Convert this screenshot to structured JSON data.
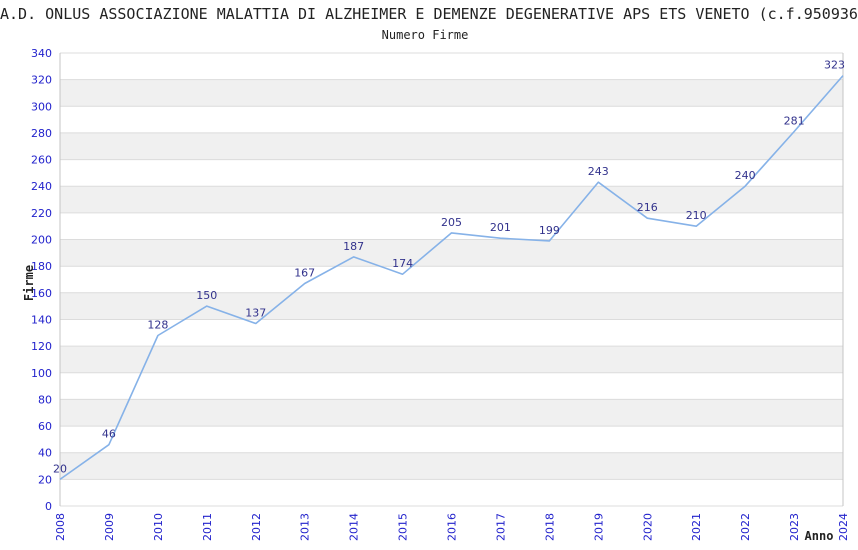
{
  "title": "A.D. ONLUS ASSOCIAZIONE MALATTIA DI ALZHEIMER E DEMENZE DEGENERATIVE APS ETS VENETO (c.f.950936",
  "subtitle": "Numero Firme",
  "chart_data": {
    "type": "line",
    "title": "Numero Firme",
    "xlabel": "Anno",
    "ylabel": "Firme",
    "x": [
      "2008",
      "2009",
      "2010",
      "2011",
      "2012",
      "2013",
      "2014",
      "2015",
      "2016",
      "2017",
      "2018",
      "2019",
      "2020",
      "2021",
      "2022",
      "2023",
      "2024"
    ],
    "values": [
      20,
      46,
      128,
      150,
      137,
      167,
      187,
      174,
      205,
      201,
      199,
      243,
      216,
      210,
      240,
      281,
      323
    ],
    "ylim": [
      0,
      340
    ],
    "ytick_step": 20,
    "yticks": [
      0,
      20,
      40,
      60,
      80,
      100,
      120,
      140,
      160,
      180,
      200,
      220,
      240,
      260,
      280,
      300,
      320,
      340
    ],
    "grid": true,
    "band_fill_alternate": true,
    "legend_position": "none",
    "data_labels_visible": true
  },
  "colors": {
    "accent-line": "#86b2e8",
    "tick-label": "#2222cc",
    "data-label": "#32328c",
    "band": "#f0f0f0",
    "gridline": "#dcdcdc",
    "axis-border": "#c4c4c4",
    "text": "#222222"
  }
}
